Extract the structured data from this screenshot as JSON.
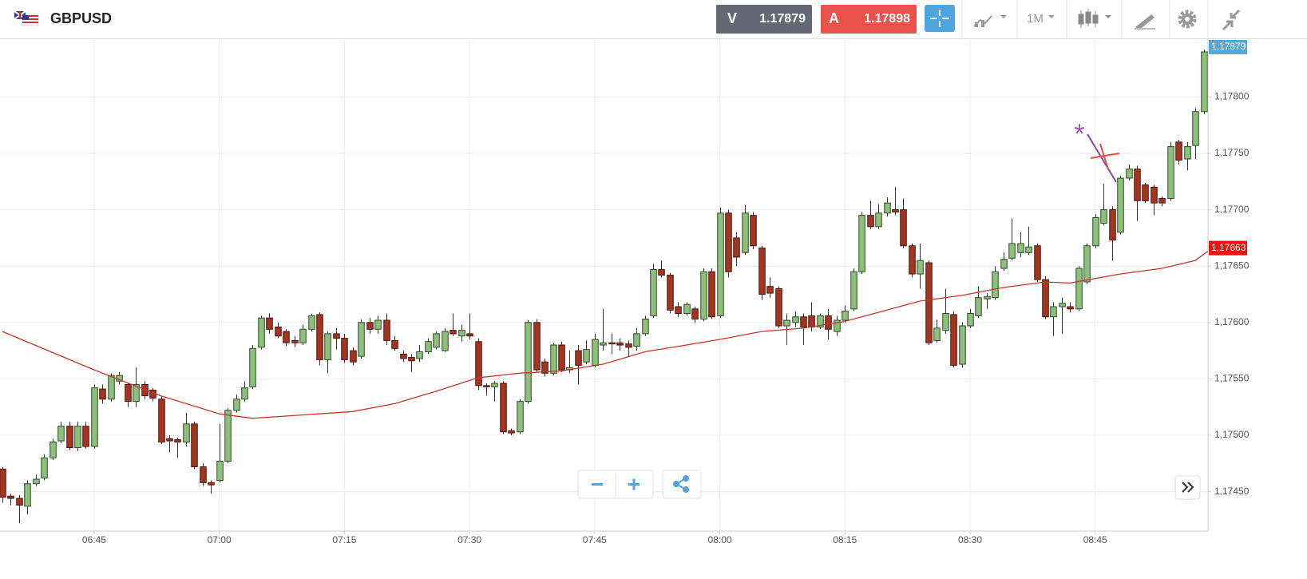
{
  "toolbar": {
    "symbol": "GBPUSD",
    "bid_label": "V",
    "bid": "1.17879",
    "ask_label": "A",
    "ask": "1.17898",
    "timeframe": "1M"
  },
  "chart_data": {
    "type": "candlestick",
    "x": [
      "06:34",
      "06:35",
      "06:36",
      "06:37",
      "06:38",
      "06:39",
      "06:40",
      "06:41",
      "06:42",
      "06:43",
      "06:44",
      "06:45",
      "06:46",
      "06:47",
      "06:48",
      "06:49",
      "06:50",
      "06:51",
      "06:52",
      "06:53",
      "06:54",
      "06:55",
      "06:56",
      "06:57",
      "06:58",
      "06:59",
      "07:00",
      "07:01",
      "07:02",
      "07:03",
      "07:04",
      "07:05",
      "07:06",
      "07:07",
      "07:08",
      "07:09",
      "07:10",
      "07:11",
      "07:12",
      "07:13",
      "07:14",
      "07:15",
      "07:16",
      "07:17",
      "07:18",
      "07:19",
      "07:20",
      "07:21",
      "07:22",
      "07:23",
      "07:24",
      "07:25",
      "07:26",
      "07:27",
      "07:28",
      "07:29",
      "07:30",
      "07:31",
      "07:32",
      "07:33",
      "07:34",
      "07:35",
      "07:36",
      "07:37",
      "07:38",
      "07:39",
      "07:40",
      "07:41",
      "07:42",
      "07:43",
      "07:44",
      "07:45",
      "07:46",
      "07:47",
      "07:48",
      "07:49",
      "07:50",
      "07:51",
      "07:52",
      "07:53",
      "07:54",
      "07:55",
      "07:56",
      "07:57",
      "07:58",
      "07:59",
      "08:00",
      "08:01",
      "08:02",
      "08:03",
      "08:04",
      "08:05",
      "08:06",
      "08:07",
      "08:08",
      "08:09",
      "08:10",
      "08:11",
      "08:12",
      "08:13",
      "08:14",
      "08:15",
      "08:16",
      "08:17",
      "08:18",
      "08:19",
      "08:20",
      "08:21",
      "08:22",
      "08:23",
      "08:24",
      "08:25",
      "08:26",
      "08:27",
      "08:28",
      "08:29",
      "08:30",
      "08:31",
      "08:32",
      "08:33",
      "08:34",
      "08:35",
      "08:36",
      "08:37",
      "08:38",
      "08:39",
      "08:40",
      "08:41",
      "08:42",
      "08:43",
      "08:44",
      "08:45",
      "08:46",
      "08:47",
      "08:48",
      "08:49",
      "08:50",
      "08:51",
      "08:52",
      "08:53",
      "08:54",
      "08:55",
      "08:56",
      "08:57",
      "08:58"
    ],
    "open": [
      1.1747,
      1.17446,
      1.17444,
      1.17437,
      1.17457,
      1.17462,
      1.1748,
      1.17495,
      1.17508,
      1.17489,
      1.17508,
      1.1749,
      1.17541,
      1.17532,
      1.17548,
      1.17545,
      1.1753,
      1.17545,
      1.1754,
      1.17532,
      1.17497,
      1.17496,
      1.17494,
      1.1751,
      1.17472,
      1.17458,
      1.1746,
      1.17477,
      1.17522,
      1.17532,
      1.17543,
      1.17578,
      1.17604,
      1.17596,
      1.17592,
      1.17584,
      1.17582,
      1.17594,
      1.17607,
      1.17567,
      1.1759,
      1.17586,
      1.17575,
      1.1757,
      1.176,
      1.17594,
      1.17602,
      1.17584,
      1.17572,
      1.17569,
      1.17568,
      1.17574,
      1.17578,
      1.17575,
      1.17593,
      1.17588,
      1.1759,
      1.17583,
      1.17544,
      1.17543,
      1.17546,
      1.17504,
      1.17503,
      1.1753,
      1.176,
      1.17565,
      1.17555,
      1.1758,
      1.17558,
      1.17575,
      1.17565,
      1.17562,
      1.1758,
      1.17582,
      1.17582,
      1.17581,
      1.17579,
      1.1759,
      1.17606,
      1.17647,
      1.17642,
      1.17614,
      1.17608,
      1.17612,
      1.17603,
      1.17645,
      1.17606,
      1.17697,
      1.17675,
      1.17662,
      1.17695,
      1.17666,
      1.17632,
      1.1763,
      1.17597,
      1.176,
      1.17605,
      1.17606,
      1.17596,
      1.17606,
      1.17592,
      1.17602,
      1.17612,
      1.17645,
      1.17695,
      1.17685,
      1.17697,
      1.177,
      1.177,
      1.17668,
      1.17643,
      1.17653,
      1.17584,
      1.17593,
      1.17607,
      1.17563,
      1.17597,
      1.17606,
      1.17621,
      1.17622,
      1.17648,
      1.17657,
      1.17662,
      1.17662,
      1.17668,
      1.17638,
      1.17605,
      1.17614,
      1.17614,
      1.17612,
      1.17636,
      1.17668,
      1.17688,
      1.177,
      1.1768,
      1.17728,
      1.17736,
      1.17722,
      1.1772,
      1.1771,
      1.1771,
      1.1776,
      1.17745,
      1.17757,
      1.17787
    ],
    "high": [
      1.17472,
      1.17448,
      1.17447,
      1.1746,
      1.17465,
      1.17483,
      1.17497,
      1.17512,
      1.17512,
      1.17512,
      1.17512,
      1.17545,
      1.17545,
      1.17555,
      1.17556,
      1.17546,
      1.1756,
      1.17548,
      1.17542,
      1.17535,
      1.175,
      1.17498,
      1.1752,
      1.17512,
      1.17475,
      1.1746,
      1.1751,
      1.17524,
      1.17536,
      1.17548,
      1.1758,
      1.17606,
      1.17608,
      1.176,
      1.17594,
      1.17588,
      1.17598,
      1.17608,
      1.17609,
      1.17592,
      1.17595,
      1.1759,
      1.17578,
      1.17603,
      1.17604,
      1.17606,
      1.17608,
      1.17588,
      1.17575,
      1.17572,
      1.1758,
      1.17586,
      1.17592,
      1.17595,
      1.17608,
      1.17598,
      1.17608,
      1.17586,
      1.17546,
      1.17548,
      1.17548,
      1.17506,
      1.17532,
      1.17602,
      1.17603,
      1.17568,
      1.17582,
      1.17583,
      1.17575,
      1.1758,
      1.17584,
      1.1759,
      1.17612,
      1.1759,
      1.17586,
      1.17584,
      1.17595,
      1.17606,
      1.17652,
      1.17655,
      1.17644,
      1.17618,
      1.17618,
      1.17614,
      1.17648,
      1.17648,
      1.17702,
      1.177,
      1.1768,
      1.17704,
      1.17698,
      1.17668,
      1.1764,
      1.17632,
      1.17608,
      1.1761,
      1.17608,
      1.17618,
      1.17608,
      1.17612,
      1.17606,
      1.17615,
      1.17648,
      1.17698,
      1.17708,
      1.17705,
      1.17711,
      1.1772,
      1.1771,
      1.1767,
      1.1767,
      1.17655,
      1.17602,
      1.1763,
      1.1761,
      1.176,
      1.17612,
      1.17632,
      1.17626,
      1.1765,
      1.17662,
      1.17692,
      1.1768,
      1.17685,
      1.1767,
      1.17641,
      1.17618,
      1.17622,
      1.17618,
      1.1765,
      1.1767,
      1.17696,
      1.17723,
      1.17703,
      1.1773,
      1.1774,
      1.17739,
      1.17724,
      1.17722,
      1.17712,
      1.1776,
      1.17762,
      1.1776,
      1.1779,
      1.17842
    ],
    "low": [
      1.1744,
      1.17438,
      1.17422,
      1.1743,
      1.17455,
      1.1746,
      1.17478,
      1.17493,
      1.17487,
      1.17486,
      1.17488,
      1.17488,
      1.17528,
      1.1753,
      1.17545,
      1.17525,
      1.17525,
      1.17532,
      1.1753,
      1.17492,
      1.17485,
      1.1748,
      1.1749,
      1.1747,
      1.17455,
      1.17448,
      1.17458,
      1.17475,
      1.1752,
      1.1753,
      1.17541,
      1.17576,
      1.1759,
      1.17586,
      1.17579,
      1.17578,
      1.1758,
      1.17592,
      1.17562,
      1.17555,
      1.17576,
      1.17564,
      1.17562,
      1.17568,
      1.1759,
      1.1759,
      1.1758,
      1.17575,
      1.17565,
      1.17556,
      1.17565,
      1.17572,
      1.17576,
      1.17574,
      1.17588,
      1.17583,
      1.17585,
      1.1754,
      1.17535,
      1.1753,
      1.17501,
      1.175,
      1.17501,
      1.17528,
      1.17556,
      1.17552,
      1.17553,
      1.17556,
      1.17555,
      1.17545,
      1.17563,
      1.1756,
      1.17575,
      1.17572,
      1.17575,
      1.1757,
      1.17575,
      1.17588,
      1.17604,
      1.1764,
      1.17608,
      1.17605,
      1.17606,
      1.176,
      1.17601,
      1.17603,
      1.17604,
      1.1764,
      1.1765,
      1.1766,
      1.17665,
      1.1762,
      1.17622,
      1.17595,
      1.1758,
      1.17596,
      1.1758,
      1.17592,
      1.17594,
      1.17585,
      1.17588,
      1.176,
      1.1761,
      1.17643,
      1.17683,
      1.17683,
      1.17694,
      1.17695,
      1.17666,
      1.1764,
      1.1763,
      1.1758,
      1.17582,
      1.1759,
      1.1756,
      1.1756,
      1.17595,
      1.17604,
      1.17612,
      1.1762,
      1.17646,
      1.17655,
      1.17658,
      1.1766,
      1.17636,
      1.17603,
      1.17588,
      1.1759,
      1.17609,
      1.1761,
      1.17634,
      1.17666,
      1.17686,
      1.17655,
      1.17678,
      1.17726,
      1.1769,
      1.17706,
      1.17695,
      1.17703,
      1.17708,
      1.1774,
      1.17735,
      1.17745,
      1.17785
    ],
    "close": [
      1.17445,
      1.17444,
      1.17438,
      1.17457,
      1.17461,
      1.1748,
      1.17494,
      1.17508,
      1.17489,
      1.17508,
      1.1749,
      1.17542,
      1.17532,
      1.17553,
      1.17553,
      1.1753,
      1.17545,
      1.17535,
      1.17533,
      1.17494,
      1.17495,
      1.17494,
      1.1751,
      1.17472,
      1.17458,
      1.17456,
      1.17477,
      1.17522,
      1.17532,
      1.17542,
      1.17577,
      1.17604,
      1.17594,
      1.17588,
      1.17582,
      1.17582,
      1.17594,
      1.17606,
      1.17567,
      1.1759,
      1.17586,
      1.17567,
      1.17565,
      1.176,
      1.17594,
      1.17602,
      1.17584,
      1.17577,
      1.17568,
      1.17566,
      1.17574,
      1.17583,
      1.1759,
      1.17592,
      1.1759,
      1.17593,
      1.17588,
      1.17544,
      1.17543,
      1.17546,
      1.17503,
      1.17502,
      1.1753,
      1.176,
      1.17558,
      1.17555,
      1.1758,
      1.17558,
      1.1756,
      1.17562,
      1.17576,
      1.17585,
      1.17582,
      1.17581,
      1.1758,
      1.17578,
      1.1759,
      1.17603,
      1.17647,
      1.17642,
      1.17611,
      1.17608,
      1.17616,
      1.17603,
      1.17645,
      1.17605,
      1.17697,
      1.17645,
      1.17658,
      1.17697,
      1.17668,
      1.17625,
      1.17626,
      1.17597,
      1.17602,
      1.17605,
      1.17596,
      1.17596,
      1.17606,
      1.17594,
      1.17602,
      1.1761,
      1.17645,
      1.17695,
      1.17685,
      1.17697,
      1.17706,
      1.17698,
      1.17668,
      1.17643,
      1.17655,
      1.17582,
      1.17595,
      1.17608,
      1.17562,
      1.17597,
      1.17608,
      1.17622,
      1.17623,
      1.17645,
      1.17656,
      1.1767,
      1.1767,
      1.17667,
      1.17638,
      1.17605,
      1.17614,
      1.17617,
      1.17612,
      1.17648,
      1.17668,
      1.17693,
      1.177,
      1.17673,
      1.17728,
      1.17736,
      1.17708,
      1.17708,
      1.17706,
      1.17706,
      1.17756,
      1.17744,
      1.17756,
      1.17787,
      1.1784
    ],
    "up_color": "#8dc07a",
    "down_color": "#a33521",
    "moving_average": {
      "color": "#c0392b",
      "x": [
        "06:34",
        "06:45",
        "06:53",
        "07:00",
        "07:04",
        "07:12",
        "07:16",
        "07:21",
        "07:26",
        "07:31",
        "07:36",
        "07:41",
        "07:46",
        "07:51",
        "07:56",
        "08:00",
        "08:05",
        "08:10",
        "08:15",
        "08:19",
        "08:24",
        "08:29",
        "08:34",
        "08:39",
        "08:42",
        "08:45",
        "08:48",
        "08:53",
        "08:57",
        "08:59"
      ],
      "values": [
        1.17592,
        1.17558,
        1.17535,
        1.17519,
        1.17515,
        1.17519,
        1.17521,
        1.17528,
        1.17539,
        1.17551,
        1.17555,
        1.17557,
        1.17563,
        1.17574,
        1.1758,
        1.17585,
        1.17592,
        1.17595,
        1.17601,
        1.17609,
        1.17619,
        1.17624,
        1.17631,
        1.17636,
        1.17635,
        1.17639,
        1.17643,
        1.17648,
        1.17655,
        1.17666
      ]
    },
    "xlim": [
      "06:34",
      "08:59"
    ],
    "xticks": [
      "06:45",
      "07:00",
      "07:15",
      "07:30",
      "07:45",
      "08:00",
      "08:15",
      "08:30",
      "08:45"
    ],
    "ylim": [
      1.17415,
      1.17852
    ],
    "yticks": [
      {
        "value": 1.1745,
        "label": "1,17450"
      },
      {
        "value": 1.175,
        "label": "1,17500"
      },
      {
        "value": 1.1755,
        "label": "1,17550"
      },
      {
        "value": 1.176,
        "label": "1,17600"
      },
      {
        "value": 1.1765,
        "label": "1,17650"
      },
      {
        "value": 1.177,
        "label": "1,17700"
      },
      {
        "value": 1.1775,
        "label": "1,17750"
      },
      {
        "value": 1.178,
        "label": "1,17800"
      }
    ],
    "grid": true,
    "price_tag": "1,17879",
    "ma_tag": "1,17663"
  }
}
